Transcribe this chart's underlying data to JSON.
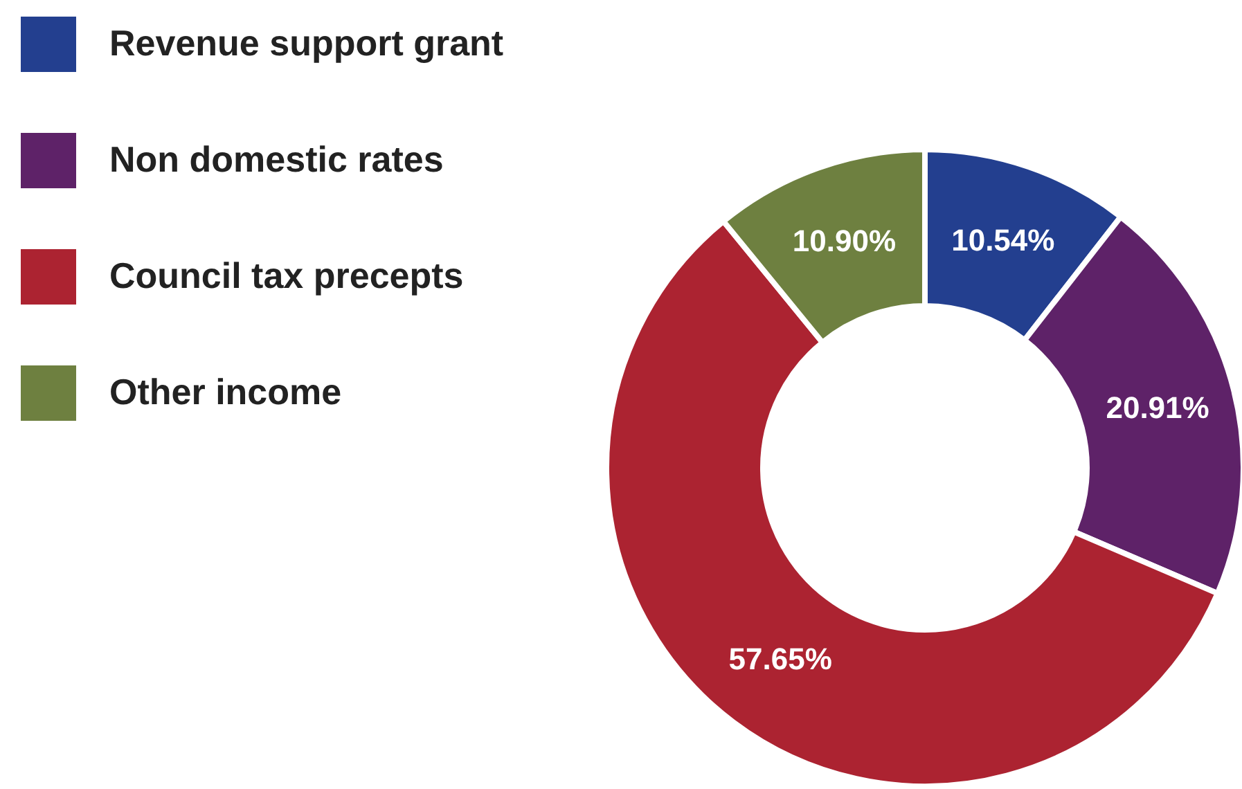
{
  "chart_data": {
    "type": "donut",
    "categories": [
      "Revenue support grant",
      "Non domestic rates",
      "Council tax precepts",
      "Other income"
    ],
    "values": [
      10.54,
      20.91,
      57.65,
      10.9
    ],
    "colors": [
      "#233f8f",
      "#5e2268",
      "#ac2331",
      "#6e8040"
    ],
    "value_labels": [
      "10.54%",
      "20.91%",
      "57.65%",
      "10.90%"
    ],
    "legend": "top left"
  }
}
